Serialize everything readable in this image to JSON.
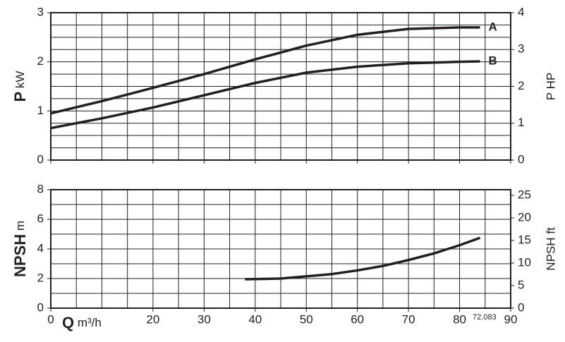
{
  "chart_data": [
    {
      "type": "line",
      "y_label": "P",
      "y_unit": "kW",
      "y2_label": "P HP",
      "xlim": [
        0,
        90
      ],
      "xticks": [
        0,
        20,
        30,
        40,
        50,
        60,
        70,
        80,
        90
      ],
      "ylim": [
        0,
        3
      ],
      "yticks": [
        0,
        1,
        2,
        3
      ],
      "y2lim": [
        0,
        4
      ],
      "y2ticks": [
        0,
        1,
        2,
        3,
        4
      ],
      "grid": true,
      "x": [
        0,
        10,
        20,
        30,
        40,
        50,
        60,
        70,
        80,
        84
      ],
      "series": [
        {
          "name": "A",
          "color": "#231f20",
          "values": [
            0.95,
            1.2,
            1.47,
            1.75,
            2.05,
            2.33,
            2.55,
            2.67,
            2.7,
            2.7
          ]
        },
        {
          "name": "B",
          "color": "#231f20",
          "values": [
            0.65,
            0.85,
            1.07,
            1.32,
            1.57,
            1.78,
            1.9,
            1.97,
            2.0,
            2.01
          ]
        }
      ]
    },
    {
      "type": "line",
      "y_label": "NPSH",
      "y_unit": "m",
      "y2_label": "NPSH ft",
      "x_label": "Q",
      "x_unit": "m³/h",
      "annotation": "72.083",
      "xlim": [
        0,
        90
      ],
      "xticks": [
        0,
        20,
        30,
        40,
        50,
        60,
        70,
        80,
        90
      ],
      "ylim": [
        0,
        8
      ],
      "yticks": [
        0,
        2,
        4,
        6,
        8
      ],
      "y2lim": [
        0,
        26.25
      ],
      "y2ticks": [
        0,
        5,
        10,
        15,
        20,
        25
      ],
      "grid": true,
      "x": [
        38,
        45,
        50,
        55,
        60,
        65,
        70,
        75,
        80,
        84
      ],
      "series": [
        {
          "color": "#231f20",
          "values": [
            1.95,
            2.0,
            2.15,
            2.3,
            2.55,
            2.85,
            3.25,
            3.7,
            4.25,
            4.75
          ]
        }
      ]
    }
  ]
}
